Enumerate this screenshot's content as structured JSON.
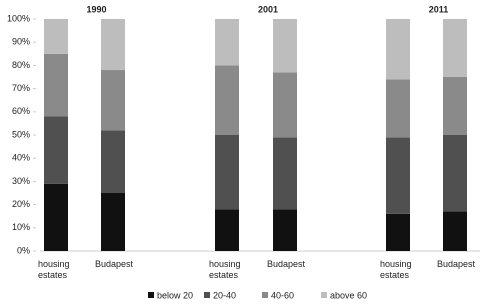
{
  "chart_data": {
    "type": "bar",
    "stacked": true,
    "groups": [
      "1990",
      "2001",
      "2011"
    ],
    "categories": [
      "housing estates",
      "Budapest",
      "housing estates",
      "Budapest",
      "housing estates",
      "Budapest"
    ],
    "series": [
      {
        "name": "below 20",
        "color": "#111111",
        "values": [
          29,
          25,
          18,
          18,
          16,
          17
        ]
      },
      {
        "name": "20-40",
        "color": "#505050",
        "values": [
          29,
          27,
          32,
          31,
          33,
          33
        ]
      },
      {
        "name": "40-60",
        "color": "#8a8a8a",
        "values": [
          27,
          26,
          30,
          28,
          25,
          25
        ]
      },
      {
        "name": "above 60",
        "color": "#bdbdbd",
        "values": [
          15,
          22,
          20,
          23,
          26,
          25
        ]
      }
    ],
    "ylim": [
      0,
      100
    ],
    "yticks": [
      {
        "value": 0,
        "label": "0%"
      },
      {
        "value": 10,
        "label": "10%"
      },
      {
        "value": 20,
        "label": "20%"
      },
      {
        "value": 30,
        "label": "30%"
      },
      {
        "value": 40,
        "label": "40%"
      },
      {
        "value": 50,
        "label": "50%"
      },
      {
        "value": 60,
        "label": "60%"
      },
      {
        "value": 70,
        "label": "70%"
      },
      {
        "value": 80,
        "label": "80%"
      },
      {
        "value": 90,
        "label": "90%"
      },
      {
        "value": 100,
        "label": "100%"
      }
    ],
    "legend": "bottom"
  }
}
